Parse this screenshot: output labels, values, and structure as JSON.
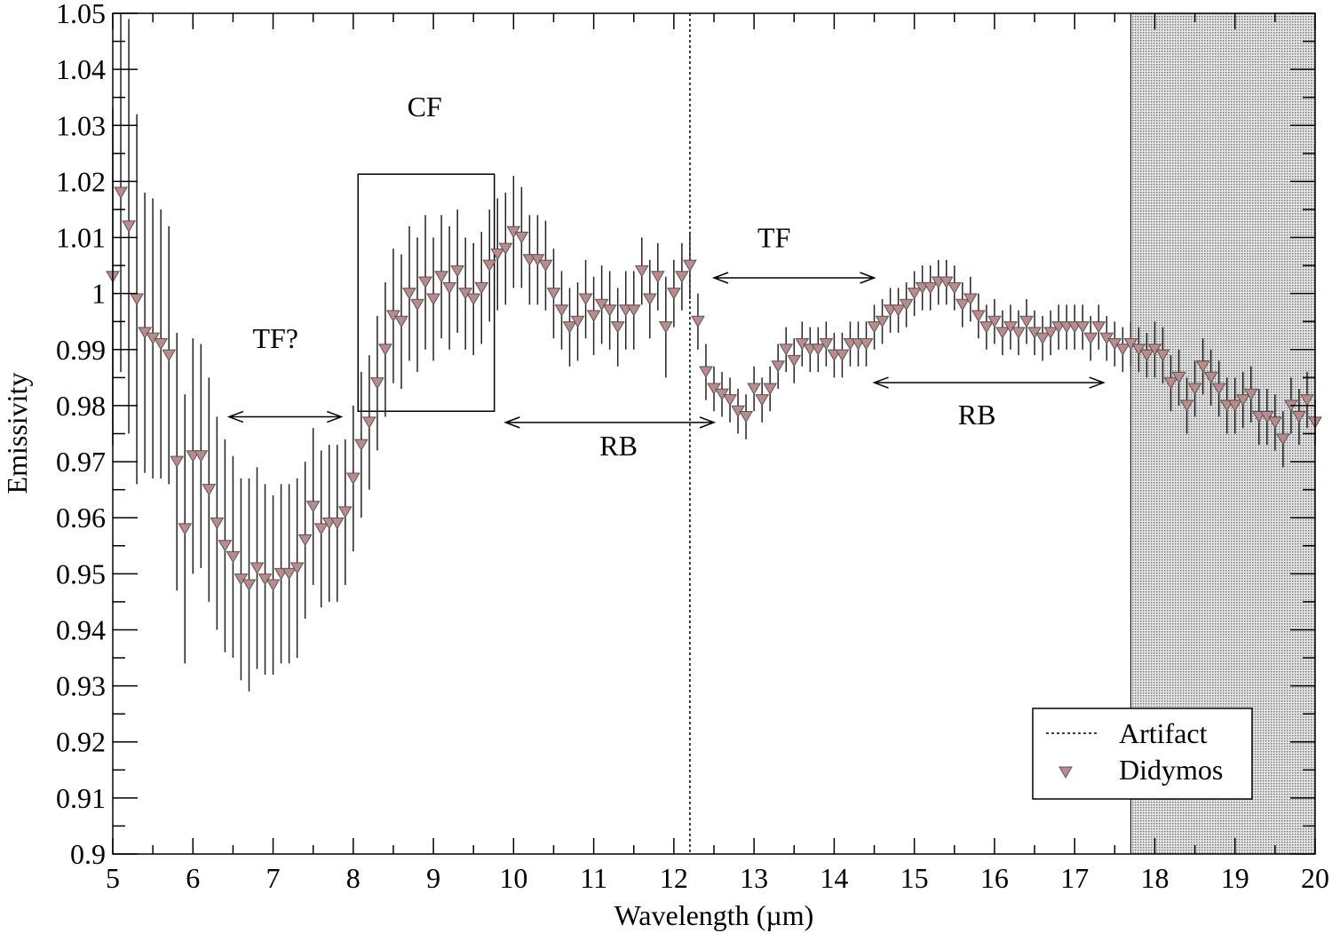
{
  "chart_data": {
    "type": "scatter",
    "xlabel": "Wavelength (µm)",
    "ylabel": "Emissivity",
    "xlim": [
      5,
      20
    ],
    "ylim": [
      0.9,
      1.05
    ],
    "xticks": [
      5,
      6,
      7,
      8,
      9,
      10,
      11,
      12,
      13,
      14,
      15,
      16,
      17,
      18,
      19,
      20
    ],
    "yticks": [
      0.9,
      0.91,
      0.92,
      0.93,
      0.94,
      0.95,
      0.96,
      0.97,
      0.98,
      0.99,
      1,
      1.01,
      1.02,
      1.03,
      1.04,
      1.05
    ],
    "ytick_labels": [
      "0.9",
      "0.91",
      "0.92",
      "0.93",
      "0.94",
      "0.95",
      "0.96",
      "0.97",
      "0.98",
      "0.99",
      "1",
      "1.01",
      "1.02",
      "1.03",
      "1.04",
      "1.05"
    ],
    "grid": false,
    "legend_placement": "bottom-right",
    "legend": [
      {
        "label": "Artifact",
        "style": "dotted-line"
      },
      {
        "label": "Didymos",
        "style": "down-triangle"
      }
    ],
    "marker_color": "#bc8a8a",
    "shaded_region": {
      "x": [
        17.7,
        20
      ],
      "color": "#c8c8c8"
    },
    "artifact_line_x": 12.2,
    "box": {
      "x": [
        8.06,
        9.76
      ],
      "y": [
        0.979,
        1.0213
      ]
    },
    "annotations": [
      {
        "text": "TF?",
        "x": 7.03,
        "y": 0.992,
        "arrow": [
          6.45,
          7.85
        ],
        "arrow_y": 0.978
      },
      {
        "text": "CF",
        "x": 8.89,
        "y": 1.0334
      },
      {
        "text": "RB",
        "x": 11.31,
        "y": 0.9729,
        "arrow": [
          9.9,
          12.5
        ],
        "arrow_y": 0.977
      },
      {
        "text": "TF",
        "x": 13.25,
        "y": 1.01,
        "arrow": [
          12.5,
          14.5
        ],
        "arrow_y": 1.0028
      },
      {
        "text": "RB",
        "x": 15.78,
        "y": 0.9784,
        "arrow": [
          14.5,
          17.36
        ],
        "arrow_y": 0.9841
      }
    ],
    "series": [
      {
        "name": "Didymos",
        "x0": 5.0,
        "dx": 0.1,
        "y": [
          1.003,
          1.018,
          1.012,
          0.999,
          0.993,
          0.992,
          0.991,
          0.989,
          0.97,
          0.958,
          0.971,
          0.971,
          0.965,
          0.959,
          0.955,
          0.953,
          0.949,
          0.948,
          0.951,
          0.949,
          0.948,
          0.95,
          0.95,
          0.951,
          0.956,
          0.962,
          0.958,
          0.959,
          0.959,
          0.961,
          0.967,
          0.973,
          0.977,
          0.984,
          0.99,
          0.996,
          0.995,
          1.0,
          0.998,
          1.002,
          0.999,
          1.003,
          1.001,
          1.004,
          1.0,
          0.999,
          1.001,
          1.005,
          1.007,
          1.008,
          1.011,
          1.01,
          1.006,
          1.006,
          1.005,
          1.0,
          0.997,
          0.994,
          0.995,
          0.999,
          0.996,
          0.998,
          0.997,
          0.994,
          0.997,
          0.997,
          1.004,
          0.999,
          1.003,
          0.994,
          1.0,
          1.003,
          1.005,
          0.995,
          0.986,
          0.983,
          0.982,
          0.981,
          0.979,
          0.978,
          0.983,
          0.981,
          0.983,
          0.987,
          0.99,
          0.988,
          0.991,
          0.99,
          0.99,
          0.991,
          0.989,
          0.989,
          0.991,
          0.991,
          0.991,
          0.994,
          0.995,
          0.997,
          0.997,
          0.998,
          1.0,
          1.001,
          1.001,
          1.002,
          1.002,
          1.001,
          0.998,
          0.999,
          0.996,
          0.994,
          0.995,
          0.993,
          0.994,
          0.993,
          0.995,
          0.993,
          0.992,
          0.993,
          0.994,
          0.994,
          0.994,
          0.994,
          0.992,
          0.994,
          0.992,
          0.991,
          0.99,
          0.991,
          0.99,
          0.989,
          0.99,
          0.989,
          0.984,
          0.985,
          0.98,
          0.983,
          0.987,
          0.985,
          0.983,
          0.98,
          0.98,
          0.981,
          0.982,
          0.978,
          0.978,
          0.977,
          0.974,
          0.98,
          0.978,
          0.981,
          0.977
        ],
        "err": [
          0.03,
          0.032,
          0.037,
          0.033,
          0.025,
          0.025,
          0.024,
          0.023,
          0.023,
          0.024,
          0.021,
          0.02,
          0.02,
          0.019,
          0.019,
          0.018,
          0.018,
          0.019,
          0.018,
          0.017,
          0.016,
          0.016,
          0.016,
          0.016,
          0.014,
          0.014,
          0.014,
          0.014,
          0.014,
          0.013,
          0.013,
          0.013,
          0.012,
          0.012,
          0.012,
          0.012,
          0.012,
          0.012,
          0.012,
          0.012,
          0.011,
          0.011,
          0.011,
          0.011,
          0.01,
          0.01,
          0.01,
          0.01,
          0.01,
          0.01,
          0.01,
          0.009,
          0.008,
          0.008,
          0.008,
          0.008,
          0.007,
          0.007,
          0.007,
          0.007,
          0.007,
          0.007,
          0.007,
          0.007,
          0.007,
          0.007,
          0.006,
          0.007,
          0.006,
          0.009,
          0.006,
          0.006,
          0.006,
          0.005,
          0.005,
          0.004,
          0.004,
          0.004,
          0.004,
          0.004,
          0.004,
          0.004,
          0.004,
          0.004,
          0.004,
          0.004,
          0.004,
          0.004,
          0.004,
          0.004,
          0.004,
          0.004,
          0.004,
          0.004,
          0.004,
          0.004,
          0.004,
          0.004,
          0.004,
          0.004,
          0.004,
          0.004,
          0.004,
          0.004,
          0.004,
          0.004,
          0.004,
          0.004,
          0.004,
          0.004,
          0.004,
          0.004,
          0.004,
          0.004,
          0.004,
          0.004,
          0.004,
          0.004,
          0.004,
          0.004,
          0.004,
          0.004,
          0.004,
          0.004,
          0.004,
          0.004,
          0.004,
          0.004,
          0.004,
          0.004,
          0.005,
          0.005,
          0.005,
          0.005,
          0.005,
          0.005,
          0.005,
          0.005,
          0.005,
          0.005,
          0.005,
          0.005,
          0.005,
          0.005,
          0.005,
          0.005,
          0.005,
          0.005,
          0.005,
          0.005,
          0.004
        ]
      }
    ]
  }
}
